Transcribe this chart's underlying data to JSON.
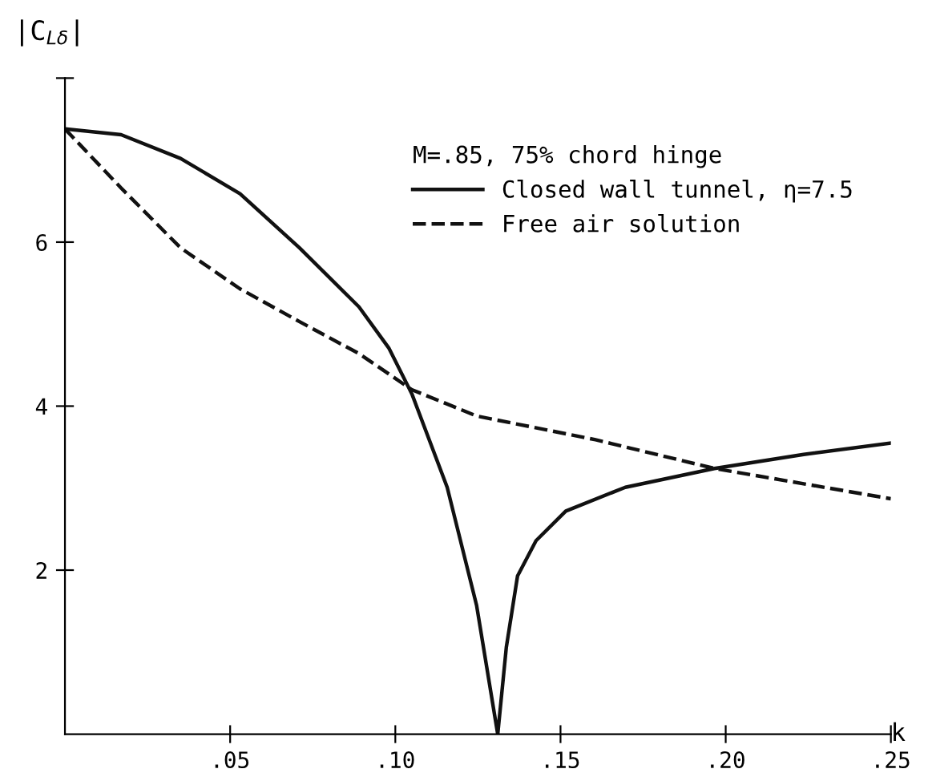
{
  "chart_data": {
    "type": "line",
    "xlabel": "k",
    "ylabel": "|C$_{Lδ}$|",
    "legend_title": "M=.85, 75% chord hinge",
    "xlim": [
      0,
      0.25
    ],
    "ylim": [
      0,
      8
    ],
    "xticks": [
      {
        "value": 0.05,
        "label": ".05"
      },
      {
        "value": 0.1,
        "label": ".10"
      },
      {
        "value": 0.15,
        "label": ".15"
      },
      {
        "value": 0.2,
        "label": ".20"
      },
      {
        "value": 0.25,
        "label": ".25"
      }
    ],
    "yticks": [
      2,
      4,
      6,
      {
        "value": 8,
        "label": null
      }
    ],
    "grid": false,
    "legend": "top right",
    "series": [
      {
        "name": "Closed wall tunnel, η=7.5",
        "color": "#111111",
        "line_style": "solid",
        "x": [
          0,
          0.017,
          0.035,
          0.053,
          0.071,
          0.089,
          0.098,
          0.105,
          0.1157,
          0.1246,
          0.131,
          0.1336,
          0.137,
          0.1426,
          0.1516,
          0.1696,
          0.1966,
          0.2236,
          0.25
        ],
        "values": [
          7.38,
          7.31,
          7.02,
          6.59,
          5.93,
          5.21,
          4.71,
          4.15,
          3.01,
          1.57,
          0,
          1.06,
          1.93,
          2.36,
          2.72,
          3.01,
          3.24,
          3.41,
          3.55
        ]
      },
      {
        "name": "Free air solution",
        "color": "#111111",
        "line_style": "dashed",
        "x": [
          0,
          0.017,
          0.035,
          0.053,
          0.071,
          0.089,
          0.105,
          0.1246,
          0.1606,
          0.1966,
          0.25
        ],
        "values": [
          7.38,
          6.66,
          5.93,
          5.43,
          5.03,
          4.64,
          4.2,
          3.88,
          3.59,
          3.24,
          2.87
        ]
      }
    ]
  }
}
